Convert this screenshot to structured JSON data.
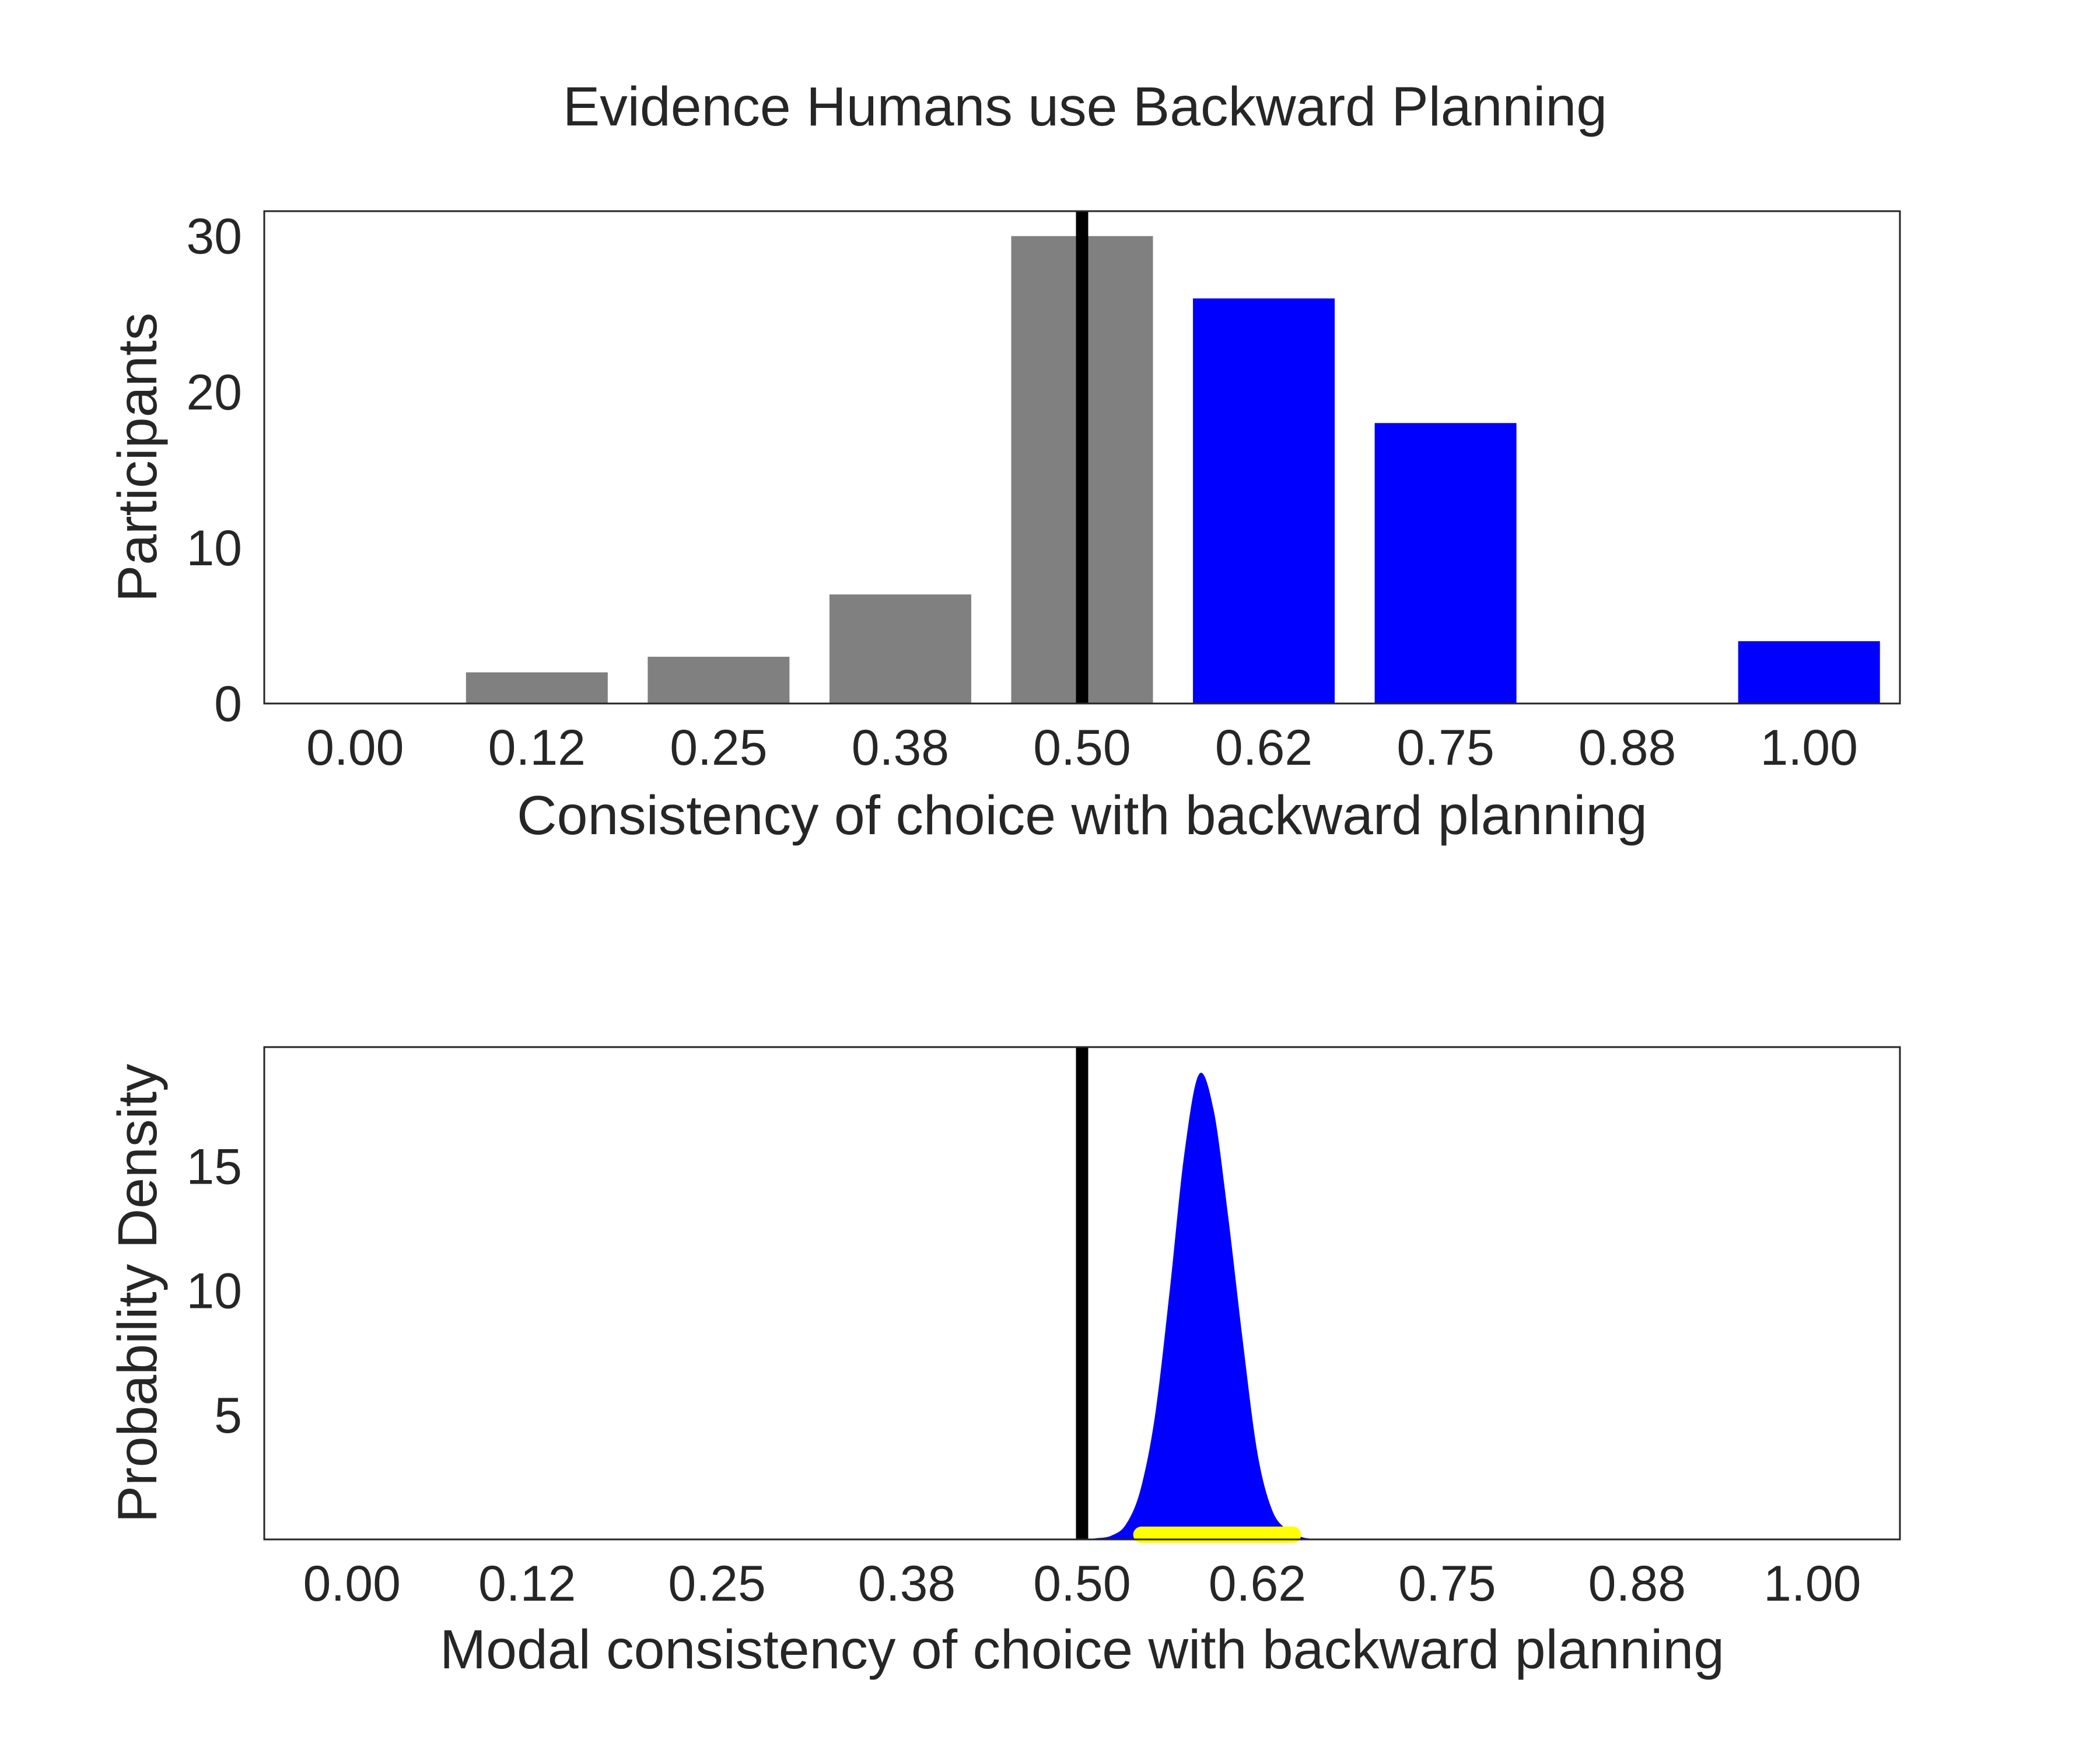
{
  "figure": {
    "title": "Evidence Humans use Backward Planning",
    "colors": {
      "gray": "#808080",
      "blue": "#0000ff",
      "yellow": "#ffff00",
      "black": "#000000",
      "text": "#262626"
    }
  },
  "chart_data": [
    {
      "type": "bar",
      "categories": [
        "0.00",
        "0.12",
        "0.25",
        "0.38",
        "0.50",
        "0.62",
        "0.75",
        "0.88",
        "1.00"
      ],
      "values": [
        0,
        2,
        3,
        7,
        30,
        26,
        18,
        0,
        4
      ],
      "bar_colors": [
        "gray",
        "gray",
        "gray",
        "gray",
        "gray",
        "blue",
        "blue",
        "blue",
        "blue"
      ],
      "xlabel": "Consistency of choice with backward planning",
      "ylabel": "Participants",
      "ylim": [
        0,
        31.6
      ],
      "yticks": [
        "0",
        "10",
        "20",
        "30"
      ],
      "reference_line_x": 0.5,
      "grid": false
    },
    {
      "type": "area",
      "x": [
        0.5,
        0.51,
        0.52,
        0.53,
        0.54,
        0.55,
        0.56,
        0.57,
        0.58,
        0.59,
        0.6,
        0.61,
        0.62,
        0.63,
        0.64,
        0.65,
        0.66,
        0.67,
        0.68
      ],
      "y": [
        0,
        0.05,
        0.15,
        0.6,
        2.0,
        5.0,
        10.0,
        15.5,
        18.7,
        17.3,
        13.0,
        8.0,
        3.5,
        1.2,
        0.4,
        0.1,
        0.02,
        0.01,
        0
      ],
      "interval": [
        0.535,
        0.65
      ],
      "fill_color": "blue",
      "interval_color": "yellow",
      "xlabel": "Modal consistency of choice with backward planning",
      "ylabel": "Probability Density",
      "xticks": [
        "0.00",
        "0.12",
        "0.25",
        "0.38",
        "0.50",
        "0.62",
        "0.75",
        "0.88",
        "1.00"
      ],
      "yticks": [
        "5",
        "10",
        "15"
      ],
      "xlim": [
        -0.06,
        1.06
      ],
      "ylim": [
        0,
        19.8
      ],
      "reference_line_x": 0.5,
      "grid": false
    }
  ]
}
